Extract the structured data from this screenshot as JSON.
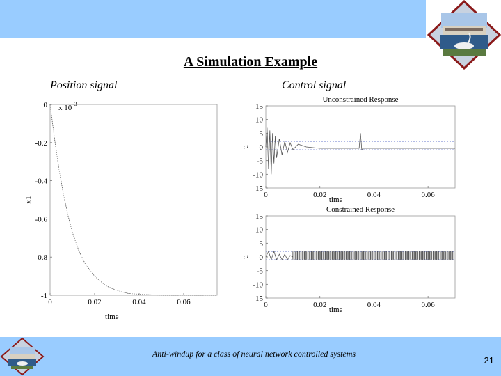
{
  "slide": {
    "title": "A Simulation Example",
    "footer": "Anti-windup for a class of neural network controlled systems",
    "page_number": "21"
  },
  "position_section": {
    "label": "Position signal"
  },
  "control_section": {
    "label": "Control signal"
  },
  "chart_data": [
    {
      "type": "line",
      "title": "",
      "xlabel": "time",
      "ylabel": "x1",
      "y_multiplier": "x 10",
      "y_multiplier_exponent": "-3",
      "xlim": [
        0,
        0.075
      ],
      "ylim": [
        -1,
        0
      ],
      "x_ticks": [
        "0",
        "0.02",
        "0.04",
        "0.06"
      ],
      "y_ticks": [
        "0",
        "-0.2",
        "-0.4",
        "-0.6",
        "-0.8",
        "-1"
      ],
      "series": [
        {
          "x": [
            0,
            0.002,
            0.004,
            0.006,
            0.008,
            0.01,
            0.013,
            0.016,
            0.02,
            0.025,
            0.03,
            0.035,
            0.04,
            0.05,
            0.06,
            0.075
          ],
          "y": [
            0,
            -0.18,
            -0.34,
            -0.47,
            -0.58,
            -0.67,
            -0.77,
            -0.84,
            -0.9,
            -0.95,
            -0.975,
            -0.99,
            -0.995,
            -1,
            -1,
            -1
          ]
        }
      ],
      "color": "#555555"
    },
    {
      "type": "line",
      "title": "Unconstrained Response",
      "xlabel": "time",
      "ylabel": "u",
      "xlim": [
        0,
        0.07
      ],
      "ylim": [
        -15,
        15
      ],
      "x_ticks": [
        "0",
        "0.02",
        "0.04",
        "0.06"
      ],
      "y_ticks": [
        "15",
        "10",
        "5",
        "0",
        "-5",
        "-10",
        "-15"
      ],
      "limit_lines": [
        2,
        -1
      ],
      "series": [
        {
          "x": [
            0,
            0.0005,
            0.001,
            0.0015,
            0.002,
            0.0025,
            0.003,
            0.0035,
            0.004,
            0.005,
            0.006,
            0.007,
            0.008,
            0.009,
            0.01,
            0.012,
            0.015,
            0.02,
            0.025,
            0.03,
            0.0345,
            0.035,
            0.0355,
            0.036,
            0.04,
            0.05,
            0.06,
            0.07
          ],
          "y": [
            0,
            7,
            -8,
            6,
            -10,
            5,
            -6,
            4,
            -4,
            3,
            -3,
            2,
            -2,
            1.5,
            -1,
            1,
            0,
            -0.5,
            -0.5,
            -0.5,
            -0.5,
            5,
            -1,
            -0.5,
            -0.5,
            -0.5,
            -0.5,
            -0.5
          ]
        }
      ],
      "color": "#555555",
      "limit_color": "#6677cc"
    },
    {
      "type": "line",
      "title": "Constrained Response",
      "xlabel": "time",
      "ylabel": "u",
      "xlim": [
        0,
        0.07
      ],
      "ylim": [
        -15,
        15
      ],
      "x_ticks": [
        "0",
        "0.02",
        "0.04",
        "0.06"
      ],
      "y_ticks": [
        "15",
        "10",
        "5",
        "0",
        "-5",
        "-10",
        "-15"
      ],
      "limit_lines": [
        2,
        -1
      ],
      "chatter_start": 0.01,
      "chatter_range": [
        -1,
        2
      ],
      "series": [
        {
          "x": [
            0,
            0.001,
            0.002,
            0.003,
            0.004,
            0.005,
            0.006,
            0.007,
            0.008,
            0.009,
            0.01
          ],
          "y": [
            0,
            2,
            -1,
            2,
            -1,
            1,
            -1,
            1,
            -1,
            0.5,
            0
          ]
        }
      ],
      "color": "#555555",
      "limit_color": "#6677cc"
    }
  ]
}
